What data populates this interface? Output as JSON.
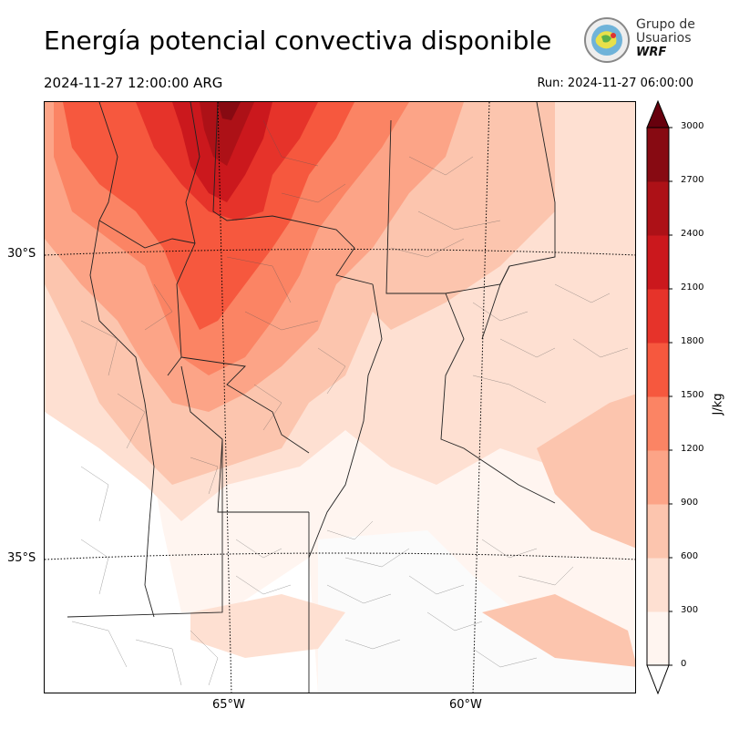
{
  "header": {
    "title": "Energía potencial convectiva disponible",
    "valid_time": "2024-11-27 12:00:00 ARG",
    "run_time": "Run: 2024-11-27 06:00:00"
  },
  "logo": {
    "line1": "Grupo de",
    "line2": "Usuarios",
    "line3": "WRF"
  },
  "map": {
    "lat_labels": [
      "30°S",
      "35°S"
    ],
    "lon_labels": [
      "65°W",
      "60°W"
    ]
  },
  "colorbar": {
    "unit": "J/kg",
    "ticks": [
      "0",
      "300",
      "600",
      "900",
      "1200",
      "1500",
      "1800",
      "2100",
      "2400",
      "2700",
      "3000"
    ],
    "colors": [
      "#fff5f0",
      "#fee0d2",
      "#fcc5ae",
      "#fca487",
      "#fb8464",
      "#f6583e",
      "#e6332a",
      "#cb181d",
      "#ad1117",
      "#870a12",
      "#67000d"
    ]
  }
}
